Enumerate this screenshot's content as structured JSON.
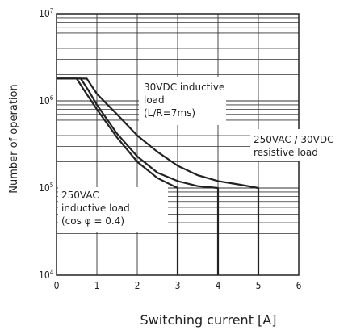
{
  "chart_data": {
    "type": "line",
    "xlabel": "Switching current [A]",
    "ylabel": "Number of operation",
    "x_scale": "linear",
    "y_scale": "log",
    "xlim": [
      0,
      6
    ],
    "ylim": [
      10000,
      10000000
    ],
    "x_ticks": [
      "0",
      "1",
      "2",
      "3",
      "4",
      "5",
      "6"
    ],
    "y_ticks": [
      {
        "value": 10000,
        "base": "10",
        "exp": "4"
      },
      {
        "value": 100000,
        "base": "10",
        "exp": "5"
      },
      {
        "value": 1000000,
        "base": "10",
        "exp": "6"
      },
      {
        "value": 10000000,
        "base": "10",
        "exp": "7"
      }
    ],
    "grid": true,
    "series": [
      {
        "label_lines": [
          "30VDC inductive",
          "load",
          "(L/R=7ms)"
        ],
        "points": [
          [
            0,
            1800000
          ],
          [
            0.5,
            1800000
          ],
          [
            0.65,
            1400000
          ],
          [
            0.8,
            1100000
          ],
          [
            1.0,
            800000
          ],
          [
            1.5,
            380000
          ],
          [
            2.0,
            200000
          ],
          [
            2.5,
            130000
          ],
          [
            3.0,
            100000
          ],
          [
            3.0,
            10000
          ]
        ]
      },
      {
        "label_lines": [
          "250VAC / 30VDC",
          "resistive load"
        ],
        "points": [
          [
            0,
            1800000
          ],
          [
            0.75,
            1800000
          ],
          [
            1.0,
            1200000
          ],
          [
            1.5,
            700000
          ],
          [
            2.0,
            400000
          ],
          [
            2.5,
            260000
          ],
          [
            3.0,
            180000
          ],
          [
            3.5,
            140000
          ],
          [
            4.0,
            120000
          ],
          [
            4.5,
            110000
          ],
          [
            5.0,
            100000
          ],
          [
            5.0,
            10000
          ]
        ]
      },
      {
        "label_lines": [
          "250VAC",
          "inductive load",
          "(cos φ = 0.4)"
        ],
        "points": [
          [
            0,
            1800000
          ],
          [
            0.6,
            1800000
          ],
          [
            0.8,
            1300000
          ],
          [
            1.0,
            900000
          ],
          [
            1.5,
            420000
          ],
          [
            2.0,
            230000
          ],
          [
            2.5,
            150000
          ],
          [
            3.0,
            120000
          ],
          [
            3.5,
            105000
          ],
          [
            4.0,
            100000
          ],
          [
            4.0,
            10000
          ]
        ]
      }
    ]
  }
}
